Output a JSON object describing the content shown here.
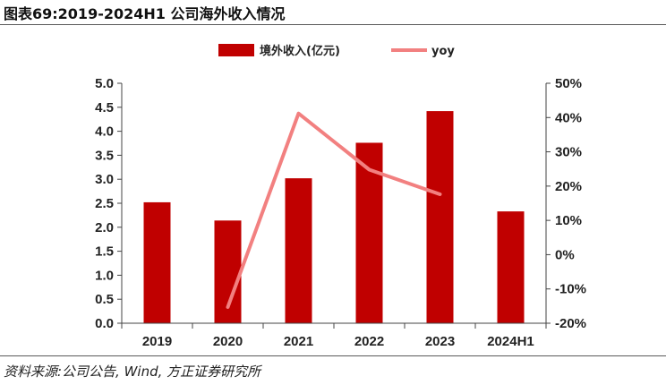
{
  "header": {
    "title": "图表69:2019-2024H1 公司海外收入情况"
  },
  "footer": {
    "source": "资料来源:公司公告, Wind, 方正证券研究所"
  },
  "chart_data": {
    "type": "bar",
    "categories": [
      "2019",
      "2020",
      "2021",
      "2022",
      "2023",
      "2024H1"
    ],
    "series": [
      {
        "name": "境外收入(亿元)",
        "type": "bar",
        "axis": "left",
        "color": "#c00000",
        "values": [
          2.52,
          2.14,
          3.02,
          3.76,
          4.42,
          2.33
        ]
      },
      {
        "name": "yoy",
        "type": "line",
        "axis": "right",
        "color": "#f28080",
        "values": [
          null,
          -15.3,
          41.2,
          24.8,
          17.6,
          null
        ]
      }
    ],
    "y_left": {
      "min": 0,
      "max": 5,
      "step": 0.5,
      "tick_labels": [
        "0.0",
        "0.5",
        "1.0",
        "1.5",
        "2.0",
        "2.5",
        "3.0",
        "3.5",
        "4.0",
        "4.5",
        "5.0"
      ]
    },
    "y_right": {
      "min": -20,
      "max": 50,
      "step": 10,
      "tick_labels": [
        "-20%",
        "-10%",
        "0%",
        "10%",
        "20%",
        "30%",
        "40%",
        "50%"
      ]
    },
    "grid": false,
    "legend": "top-center"
  }
}
